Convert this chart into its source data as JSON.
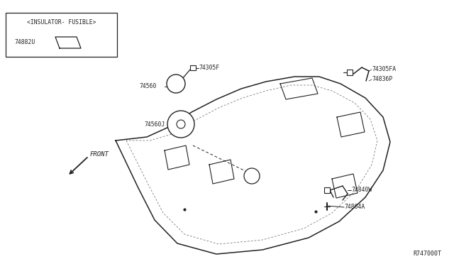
{
  "bg_color": "#ffffff",
  "line_color": "#222222",
  "text_color": "#222222",
  "title_ref": "R747000T",
  "fig_width": 6.4,
  "fig_height": 3.72,
  "labels": {
    "insulator_box_title": "<INSULATOR- FUSIBLE>",
    "part_74882U": "74882U",
    "part_74305F": "74305F",
    "part_74560": "74560",
    "part_74560J": "74560J",
    "part_74305FA": "74305FA",
    "part_74836P": "74836P",
    "part_74840W": "74840W",
    "part_74864A": "74864A",
    "front_label": "FRONT"
  }
}
